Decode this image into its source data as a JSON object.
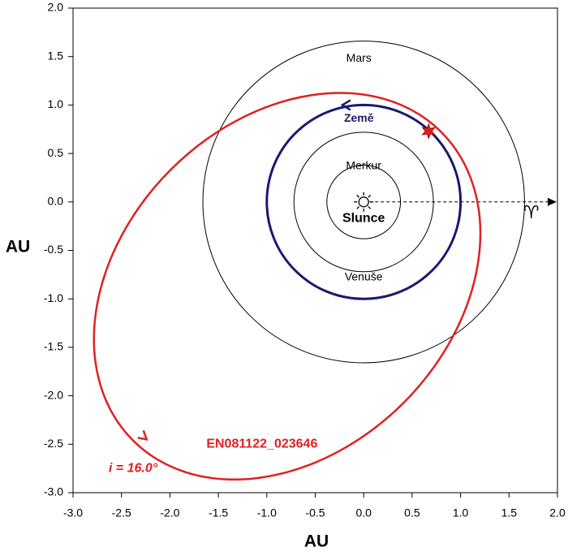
{
  "chart_data": {
    "type": "orbit",
    "xlabel": "AU",
    "ylabel": "AU",
    "xlim": [
      -3.0,
      2.0
    ],
    "ylim": [
      -3.0,
      2.0
    ],
    "xticks": [
      {
        "value": -3.0,
        "label": "-3.0"
      },
      {
        "value": -2.5,
        "label": "-2.5"
      },
      {
        "value": -2.0,
        "label": "-2.0"
      },
      {
        "value": -1.5,
        "label": "-1.5"
      },
      {
        "value": -1.0,
        "label": "-1.0"
      },
      {
        "value": -0.5,
        "label": "-0.5"
      },
      {
        "value": 0.0,
        "label": "0.0"
      },
      {
        "value": 0.5,
        "label": "0.5"
      },
      {
        "value": 1.0,
        "label": "1.0"
      },
      {
        "value": 1.5,
        "label": "1.5"
      },
      {
        "value": 2.0,
        "label": "2.0"
      }
    ],
    "yticks": [
      {
        "value": -3.0,
        "label": "-3.0"
      },
      {
        "value": -2.5,
        "label": "-2.5"
      },
      {
        "value": -2.0,
        "label": "-2.0"
      },
      {
        "value": -1.5,
        "label": "-1.5"
      },
      {
        "value": -1.0,
        "label": "-1.0"
      },
      {
        "value": -0.5,
        "label": "-0.5"
      },
      {
        "value": 0.0,
        "label": "0.0"
      },
      {
        "value": 0.5,
        "label": "0.5"
      },
      {
        "value": 1.0,
        "label": "1.0"
      },
      {
        "value": 1.5,
        "label": "1.5"
      },
      {
        "value": 2.0,
        "label": "2.0"
      }
    ],
    "sun": "Slunce",
    "equinox": "♈",
    "planets": [
      {
        "name": "Merkur",
        "radius": 0.38,
        "color": "#000000"
      },
      {
        "name": "Venuše",
        "radius": 0.72,
        "color": "#000000"
      },
      {
        "name": "Země",
        "radius": 1.0,
        "color": "#1a1a6e"
      },
      {
        "name": "Mars",
        "radius": 1.66,
        "color": "#000000"
      }
    ],
    "meteoroid": {
      "name": "EN081122_023646",
      "inclination": "i = 16.0°",
      "color": "#e02020",
      "center": [
        -0.79,
        -0.87
      ],
      "semi_axes": [
        2.25,
        1.7
      ],
      "angle": 45,
      "impact": [
        0.67,
        0.73
      ]
    }
  }
}
